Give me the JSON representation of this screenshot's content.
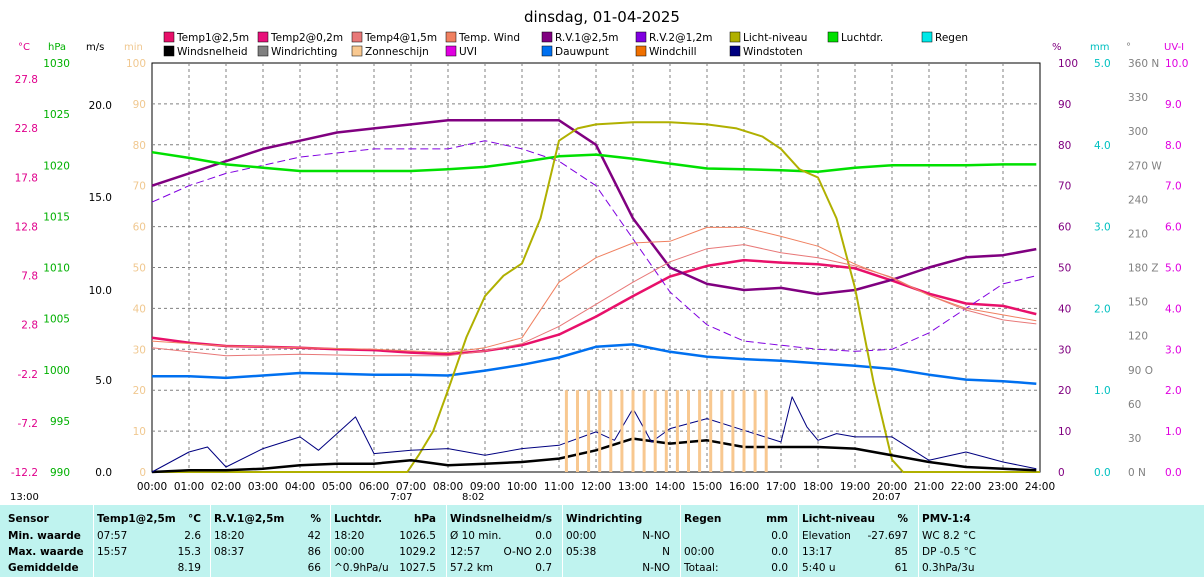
{
  "title": "dinsdag, 01-04-2025",
  "axes": {
    "temp_unit": "°C",
    "pressure_unit": "hPa",
    "wind_unit": "m/s",
    "min_unit": "min",
    "pct_unit": "%",
    "mm_unit": "mm",
    "deg_unit": "°",
    "uv_unit": "UV-I",
    "temp_ticks": [
      "27.8",
      "22.8",
      "17.8",
      "12.8",
      "7.8",
      "2.8",
      "-2.2",
      "-7.2",
      "-12.2"
    ],
    "pressure_ticks": [
      "1030",
      "1025",
      "1020",
      "1015",
      "1010",
      "1005",
      "1000",
      "995",
      "990"
    ],
    "wind_ticks": [
      "20.0",
      "15.0",
      "10.0",
      "5.0",
      "0.0"
    ],
    "min_ticks": [
      "100",
      "90",
      "80",
      "70",
      "60",
      "50",
      "40",
      "30",
      "20",
      "10",
      "0"
    ],
    "pct_ticks": [
      "100",
      "90",
      "80",
      "70",
      "60",
      "50",
      "40",
      "30",
      "20",
      "10",
      "0"
    ],
    "mm_ticks": [
      "5.0",
      "4.0",
      "3.0",
      "2.0",
      "1.0",
      "0.0"
    ],
    "deg_ticks": [
      "360 N",
      "330",
      "300",
      "270 W",
      "240",
      "210",
      "180 Z",
      "150",
      "120",
      "90 O",
      "60",
      "30",
      "0 N"
    ],
    "uv_ticks": [
      "10.0",
      "9.0",
      "8.0",
      "7.0",
      "6.0",
      "5.0",
      "4.0",
      "3.0",
      "2.0",
      "1.0",
      "0.0"
    ],
    "x_ticks": [
      "00:00",
      "01:00",
      "02:00",
      "03:00",
      "04:00",
      "05:00",
      "06:00",
      "07:00",
      "08:00",
      "09:00",
      "10:00",
      "11:00",
      "12:00",
      "13:00",
      "14:00",
      "15:00",
      "16:00",
      "17:00",
      "18:00",
      "19:00",
      "20:00",
      "21:00",
      "22:00",
      "23:00",
      "24:00"
    ],
    "solar_noon": "13:00",
    "sunrise": "7:07",
    "sunrise2": "8:02",
    "sunset": "20:07"
  },
  "legend": [
    {
      "label": "Temp1@2,5m",
      "color": "#e8106a"
    },
    {
      "label": "Temp2@0,2m",
      "color": "#e8107a"
    },
    {
      "label": "Temp4@1,5m",
      "color": "#e87878"
    },
    {
      "label": "Temp. Wind",
      "color": "#f08060"
    },
    {
      "label": "R.V.1@2,5m",
      "color": "#800080"
    },
    {
      "label": "R.V.2@1,2m",
      "color": "#8000e0"
    },
    {
      "label": "Licht-niveau",
      "color": "#b0b000"
    },
    {
      "label": "Luchtdr.",
      "color": "#00e000"
    },
    {
      "label": "Regen",
      "color": "#00e8e8"
    },
    {
      "label": "Windsnelheid",
      "color": "#000000"
    },
    {
      "label": "Windrichting",
      "color": "#808080"
    },
    {
      "label": "Zonneschijn",
      "color": "#f8c890"
    },
    {
      "label": "UVI",
      "color": "#e000e0"
    },
    {
      "label": "Dauwpunt",
      "color": "#0070f0"
    },
    {
      "label": "Windchill",
      "color": "#f07000"
    },
    {
      "label": "Windstoten",
      "color": "#000080"
    }
  ],
  "chart_data": {
    "type": "line",
    "title": "dinsdag, 01-04-2025",
    "x_unit": "hour",
    "series": [
      {
        "name": "Temp1@2,5m",
        "unit": "°C",
        "color": "#e8106a",
        "x": [
          0,
          1,
          2,
          3,
          4,
          5,
          6,
          7,
          8,
          9,
          10,
          11,
          12,
          13,
          14,
          15,
          16,
          17,
          18,
          19,
          20,
          21,
          22,
          23,
          23.9
        ],
        "values": [
          4.2,
          3.6,
          3.2,
          3.1,
          3.0,
          2.8,
          2.7,
          2.4,
          2.2,
          2.6,
          3.3,
          4.6,
          6.8,
          9.3,
          11.7,
          13.0,
          13.7,
          13.4,
          13.2,
          12.7,
          11.2,
          9.6,
          8.4,
          8.1,
          7.1
        ]
      },
      {
        "name": "R.V.1@2,5m",
        "unit": "%",
        "color": "#800080",
        "x": [
          0,
          1,
          2,
          3,
          4,
          5,
          6,
          7,
          8,
          9,
          10,
          11,
          12,
          13,
          13.5,
          14,
          15,
          16,
          17,
          18,
          19,
          20,
          21,
          22,
          23,
          23.9
        ],
        "values": [
          70,
          73,
          76,
          79,
          81,
          83,
          84,
          85,
          86,
          86,
          86,
          86,
          80,
          62,
          56,
          50,
          46,
          44.5,
          45,
          43.5,
          44.5,
          47,
          50,
          52.5,
          53,
          54.5
        ]
      },
      {
        "name": "R.V.2@1,2m",
        "unit": "%",
        "color": "#8000e0",
        "x": [
          0,
          1,
          2,
          3,
          4,
          5,
          6,
          7,
          8,
          9,
          10,
          11,
          12,
          13,
          14,
          15,
          16,
          17,
          18,
          19,
          20,
          21,
          22,
          23,
          23.9
        ],
        "values": [
          66,
          70,
          73,
          75,
          77,
          78,
          79,
          79,
          79,
          81,
          79,
          76,
          70,
          57,
          44,
          36,
          32,
          31,
          30,
          29.5,
          30,
          34,
          40,
          46,
          48
        ]
      },
      {
        "name": "Luchtdr.",
        "unit": "hPa",
        "color": "#00e000",
        "x": [
          0,
          1,
          2,
          3,
          4,
          5,
          6,
          7,
          8,
          9,
          10,
          11,
          12,
          13,
          14,
          15,
          16,
          17,
          18,
          19,
          20,
          21,
          22,
          23,
          23.9
        ],
        "values": [
          1029.1,
          1028.4,
          1027.6,
          1027.2,
          1026.8,
          1026.8,
          1026.8,
          1026.8,
          1027.0,
          1027.3,
          1027.9,
          1028.6,
          1028.8,
          1028.3,
          1027.7,
          1027.1,
          1027.0,
          1026.9,
          1026.7,
          1027.2,
          1027.5,
          1027.5,
          1027.5,
          1027.6,
          1027.6
        ]
      },
      {
        "name": "Dauwpunt",
        "unit": "°C",
        "color": "#0070f0",
        "x": [
          0,
          1,
          2,
          3,
          4,
          5,
          6,
          7,
          8,
          9,
          10,
          11,
          12,
          13,
          14,
          15,
          16,
          17,
          18,
          19,
          20,
          21,
          22,
          23,
          23.9
        ],
        "values": [
          -0.5,
          -0.5,
          -0.7,
          -0.4,
          -0.1,
          -0.2,
          -0.3,
          -0.3,
          -0.4,
          0.2,
          0.9,
          1.8,
          3.1,
          3.4,
          2.5,
          1.9,
          1.6,
          1.4,
          1.1,
          0.8,
          0.4,
          -0.3,
          -0.9,
          -1.1,
          -1.4
        ]
      },
      {
        "name": "Licht-niveau",
        "unit": "%",
        "color": "#b0b000",
        "x": [
          0,
          6.9,
          7.2,
          7.6,
          8,
          8.5,
          9,
          9.5,
          10,
          10.5,
          11,
          11.5,
          12,
          13,
          14,
          15,
          15.8,
          16.5,
          17,
          17.5,
          18,
          18.5,
          19,
          19.5,
          20,
          20.3,
          24
        ],
        "values": [
          0,
          0,
          4,
          10,
          20,
          33,
          43,
          48,
          51,
          62,
          81,
          84,
          85,
          85.5,
          85.5,
          85,
          84,
          82,
          79,
          74,
          72,
          62,
          45,
          22,
          3,
          0,
          0
        ]
      },
      {
        "name": "Windsnelheid",
        "unit": "m/s",
        "color": "#000000",
        "x": [
          0,
          1,
          2,
          3,
          4,
          5,
          6,
          7,
          8,
          9,
          10,
          11,
          12,
          13,
          14,
          15,
          16,
          17,
          18,
          19,
          20,
          21,
          22,
          23,
          23.9
        ],
        "values": [
          0.0,
          0.1,
          0.1,
          0.2,
          0.4,
          0.5,
          0.5,
          0.7,
          0.4,
          0.5,
          0.6,
          0.8,
          1.3,
          2.0,
          1.7,
          1.9,
          1.5,
          1.5,
          1.5,
          1.4,
          1.0,
          0.6,
          0.3,
          0.2,
          0.1
        ]
      },
      {
        "name": "Windstoten",
        "unit": "m/s",
        "color": "#000080",
        "x": [
          0,
          1,
          1.5,
          2,
          3,
          4,
          4.5,
          5,
          5.5,
          6,
          7,
          8,
          9,
          10,
          11,
          12,
          12.5,
          13,
          13.5,
          14,
          15,
          16,
          17,
          17.3,
          17.7,
          18,
          18.5,
          19,
          20,
          21,
          22,
          23,
          23.9
        ],
        "values": [
          0.0,
          1.2,
          1.5,
          0.3,
          1.4,
          2.1,
          1.3,
          2.3,
          3.3,
          1.1,
          1.3,
          1.4,
          1.0,
          1.4,
          1.6,
          2.4,
          1.9,
          3.8,
          1.8,
          2.6,
          3.2,
          2.5,
          1.8,
          4.5,
          2.7,
          1.9,
          2.3,
          2.1,
          2.1,
          0.7,
          1.2,
          0.6,
          0.2
        ]
      },
      {
        "name": "Temp4@1,5m",
        "unit": "°C",
        "color": "#e87878",
        "x": [
          0,
          2,
          4,
          6,
          8,
          9,
          10,
          11,
          12,
          13,
          14,
          15,
          16,
          17,
          18,
          19,
          20,
          21,
          22,
          23,
          23.9
        ],
        "values": [
          3.0,
          2.0,
          2.2,
          2.0,
          2.0,
          2.6,
          3.5,
          5.6,
          8.3,
          11.0,
          13.5,
          15.1,
          15.6,
          14.6,
          14.0,
          13.0,
          11.6,
          9.4,
          7.6,
          6.4,
          5.9
        ]
      },
      {
        "name": "Temp. Wind",
        "unit": "°C",
        "color": "#f08060",
        "x": [
          0,
          2,
          4,
          6,
          8,
          9,
          10,
          11,
          12,
          13,
          14,
          15,
          16,
          17,
          18,
          19,
          20,
          21,
          22,
          23,
          23.9
        ],
        "values": [
          3.8,
          3.2,
          3.0,
          2.8,
          2.4,
          3.0,
          4.2,
          11.0,
          14.0,
          15.8,
          16.0,
          17.7,
          17.7,
          16.6,
          15.4,
          13.2,
          11.5,
          9.4,
          7.8,
          7.0,
          6.3
        ]
      },
      {
        "name": "Zonneschijn",
        "unit": "min",
        "color": "#f8c890",
        "x": [
          11.2,
          11.5,
          11.8,
          12.1,
          12.4,
          12.7,
          13.0,
          13.3,
          13.6,
          13.9,
          14.2,
          14.5,
          14.8,
          15.1,
          15.4,
          15.7,
          16.0,
          16.3,
          16.6
        ],
        "values": [
          20,
          20,
          20,
          20,
          20,
          20,
          20,
          20,
          20,
          20,
          20,
          20,
          20,
          20,
          20,
          20,
          20,
          20,
          20
        ]
      }
    ]
  },
  "summary": {
    "row_labels": [
      "Sensor",
      "Min. waarde",
      "Max. waarde",
      "Gemiddelde"
    ],
    "columns": [
      {
        "header": "Temp1@2,5m",
        "unit": "°C",
        "rows": [
          [
            "07:57",
            "2.6"
          ],
          [
            "15:57",
            "15.3"
          ],
          [
            "",
            "8.19"
          ]
        ]
      },
      {
        "header": "R.V.1@2,5m",
        "unit": "%",
        "rows": [
          [
            "18:20",
            "42"
          ],
          [
            "08:37",
            "86"
          ],
          [
            "",
            "66"
          ]
        ]
      },
      {
        "header": "Luchtdr.",
        "unit": "hPa",
        "rows": [
          [
            "18:20",
            "1026.5"
          ],
          [
            "00:00",
            "1029.2"
          ],
          [
            "^0.9hPa/u",
            "1027.5"
          ]
        ]
      },
      {
        "header": "Windsnelheid",
        "unit": "m/s",
        "rows": [
          [
            "Ø 10 min.",
            "0.0"
          ],
          [
            "12:57",
            "O-NO 2.0"
          ],
          [
            "57.2 km",
            "0.7"
          ]
        ]
      },
      {
        "header": "Windrichting",
        "unit": "",
        "rows": [
          [
            "00:00",
            "N-NO"
          ],
          [
            "05:38",
            "N"
          ],
          [
            "",
            "N-NO"
          ]
        ]
      },
      {
        "header": "Regen",
        "unit": "mm",
        "rows": [
          [
            "",
            "0.0"
          ],
          [
            "00:00",
            "0.0"
          ],
          [
            "Totaal:",
            "0.0"
          ]
        ]
      },
      {
        "header": "Licht-niveau",
        "unit": "%",
        "rows": [
          [
            "Elevation",
            "-27.697"
          ],
          [
            "13:17",
            "85"
          ],
          [
            "5:40 u",
            "61"
          ]
        ]
      },
      {
        "header": "PMV-1:4",
        "unit": "",
        "rows": [
          [
            "WC 8.2 °C",
            ""
          ],
          [
            "DP -0.5 °C",
            ""
          ],
          [
            "0.3hPa/3u",
            ""
          ]
        ]
      }
    ]
  }
}
